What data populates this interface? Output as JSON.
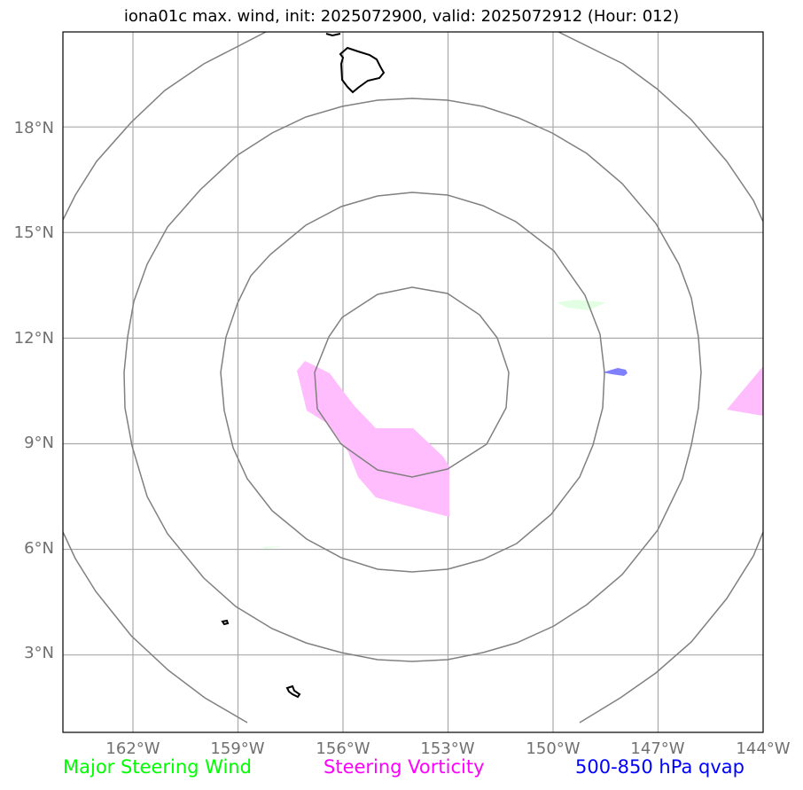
{
  "title": "iona01c max. wind, init: 2025072900, valid: 2025072912 (Hour: 012)",
  "map": {
    "lat_labels": [
      "18°N",
      "15°N",
      "12°N",
      "9°N",
      "6°N",
      "3°N"
    ],
    "lon_labels": [
      "162°W",
      "159°W",
      "156°W",
      "153°W",
      "150°W",
      "147°W",
      "144°W"
    ],
    "lat_range": [
      0.8,
      20.7
    ],
    "lon_range": [
      -164.0,
      -144.0
    ],
    "gridlines": true,
    "range_rings": 4,
    "colors": {
      "frame": "#000000",
      "grid": "#a9a9a9",
      "rings": "#808080",
      "coastline": "#000000",
      "steering_vorticity": "#ffbdfd",
      "major_steering_wind": "#e3ffe3",
      "qvap": "#8080ff"
    }
  },
  "legend": {
    "major_steering_wind": {
      "label": "Major Steering Wind",
      "color": "#00ff00"
    },
    "steering_vorticity": {
      "label": "Steering Vorticity",
      "color": "#ff00ff"
    },
    "qvap": {
      "label": "500-850 hPa qvap",
      "color": "#0000ff"
    }
  }
}
